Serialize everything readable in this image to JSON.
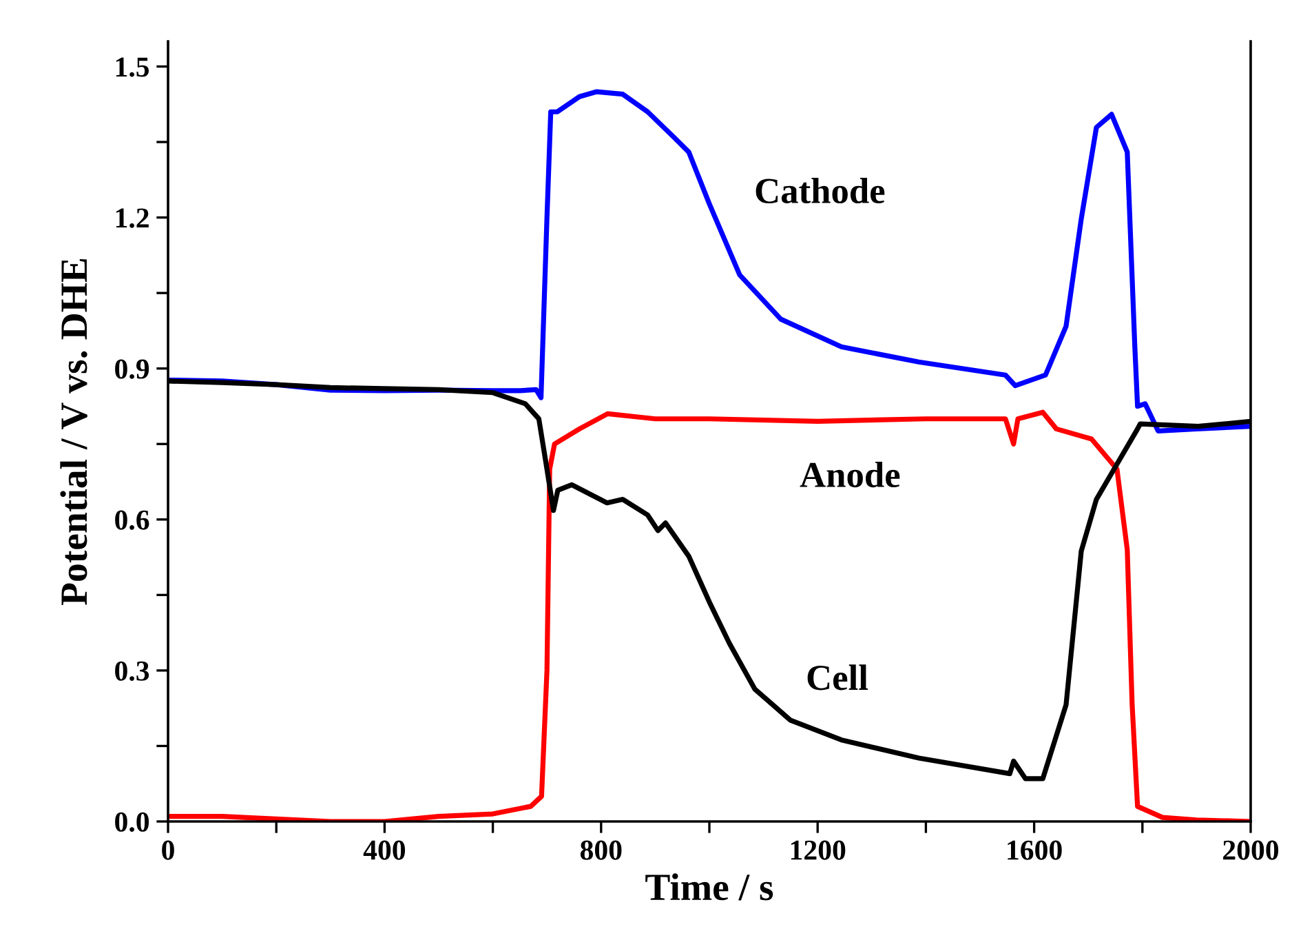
{
  "chart_data": {
    "type": "line",
    "xlabel": "Time / s",
    "ylabel": "Potential / V vs. DHE",
    "xlim": [
      0,
      2000
    ],
    "ylim": [
      0,
      1.55
    ],
    "xticks": [
      0,
      {
        "value": 200,
        "label": null
      },
      400,
      {
        "value": 600,
        "label": null
      },
      800,
      {
        "value": 1000,
        "label": null
      },
      1200,
      {
        "value": 1400,
        "label": null
      },
      1600,
      {
        "value": 1800,
        "label": null
      },
      2000
    ],
    "yticks": [
      {
        "value": 0,
        "label": "0.0"
      },
      {
        "value": 0.15,
        "label": null
      },
      {
        "value": 0.3,
        "label": "0.3"
      },
      {
        "value": 0.45,
        "label": null
      },
      {
        "value": 0.6,
        "label": "0.6"
      },
      {
        "value": 0.75,
        "label": null
      },
      {
        "value": 0.9,
        "label": "0.9"
      },
      {
        "value": 1.05,
        "label": null
      },
      {
        "value": 1.2,
        "label": "1.2"
      },
      {
        "value": 1.35,
        "label": null
      },
      {
        "value": 1.5,
        "label": "1.5"
      }
    ],
    "grid": false,
    "legend": false,
    "marker": "none",
    "line_style": "solid",
    "series": [
      {
        "name": "Cathode",
        "color": "#0000ff",
        "x": [
          0,
          100,
          200,
          300,
          400,
          500,
          600,
          650,
          680,
          689,
          700,
          707,
          719,
          760,
          792,
          840,
          886,
          934,
          962,
          1000,
          1056,
          1132,
          1244,
          1387,
          1547,
          1565,
          1621,
          1659,
          1687,
          1715,
          1743,
          1772,
          1786,
          1791,
          1805,
          1829,
          1900,
          2000
        ],
        "values": [
          0.877,
          0.875,
          0.868,
          0.857,
          0.856,
          0.857,
          0.856,
          0.856,
          0.858,
          0.842,
          1.2,
          1.41,
          1.41,
          1.44,
          1.45,
          1.445,
          1.41,
          1.36,
          1.33,
          1.227,
          1.086,
          0.998,
          0.943,
          0.913,
          0.887,
          0.866,
          0.887,
          0.984,
          1.197,
          1.379,
          1.405,
          1.33,
          0.943,
          0.825,
          0.83,
          0.776,
          0.78,
          0.785
        ]
      },
      {
        "name": "Anode",
        "color": "#ff0000",
        "x": [
          0,
          100,
          200,
          300,
          400,
          500,
          600,
          670,
          690,
          700,
          705,
          714,
          760,
          812,
          900,
          1000,
          1200,
          1400,
          1547,
          1562,
          1570,
          1616,
          1641,
          1706,
          1753,
          1772,
          1781,
          1791,
          1837,
          1900,
          2000
        ],
        "values": [
          0.01,
          0.01,
          0.005,
          0.0,
          0.0,
          0.01,
          0.015,
          0.03,
          0.05,
          0.3,
          0.7,
          0.75,
          0.78,
          0.81,
          0.8,
          0.8,
          0.795,
          0.8,
          0.8,
          0.75,
          0.8,
          0.813,
          0.78,
          0.76,
          0.7,
          0.54,
          0.233,
          0.03,
          0.008,
          0.003,
          0.0
        ]
      },
      {
        "name": "Cell",
        "color": "#000000",
        "x": [
          0,
          100,
          200,
          300,
          400,
          500,
          600,
          660,
          685,
          697,
          712,
          720,
          746,
          811,
          840,
          886,
          905,
          919,
          962,
          1000,
          1037,
          1084,
          1150,
          1244,
          1387,
          1555,
          1562,
          1584,
          1616,
          1659,
          1687,
          1715,
          1753,
          1791,
          1796,
          1903,
          2000
        ],
        "values": [
          0.875,
          0.872,
          0.868,
          0.862,
          0.86,
          0.858,
          0.852,
          0.83,
          0.8,
          0.72,
          0.618,
          0.658,
          0.669,
          0.633,
          0.64,
          0.609,
          0.578,
          0.593,
          0.527,
          0.436,
          0.354,
          0.263,
          0.201,
          0.162,
          0.126,
          0.095,
          0.12,
          0.085,
          0.085,
          0.232,
          0.537,
          0.64,
          0.71,
          0.78,
          0.79,
          0.785,
          0.795
        ]
      }
    ]
  }
}
